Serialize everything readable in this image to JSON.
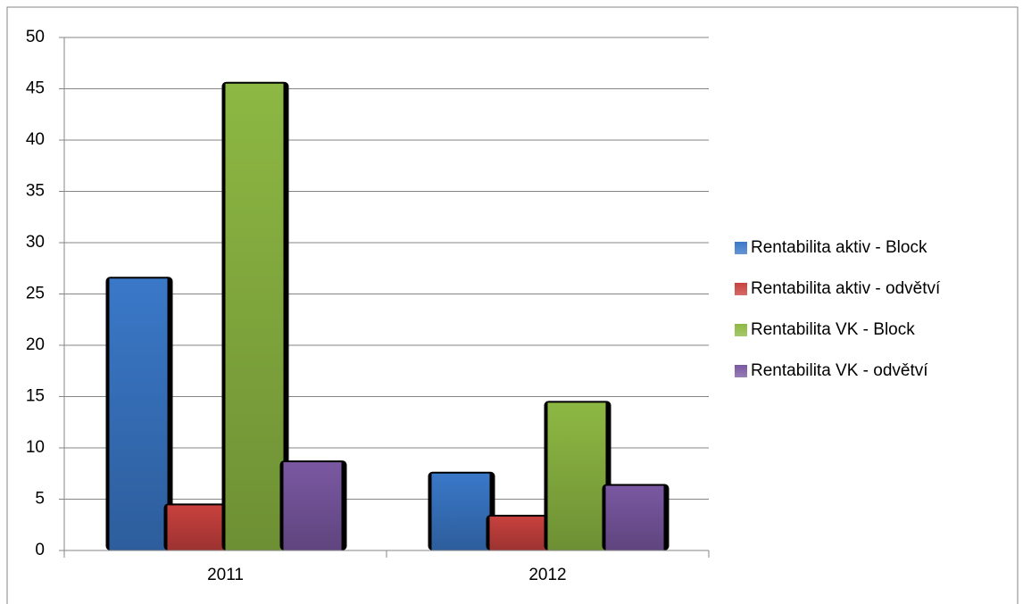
{
  "chart_data": {
    "type": "bar",
    "categories": [
      "2011",
      "2012"
    ],
    "series": [
      {
        "name": "Rentabilita aktiv - Block",
        "color": "#3a78c8",
        "values": [
          26.5,
          7.5
        ]
      },
      {
        "name": "Rentabilita aktiv - odvětví",
        "color": "#c8413e",
        "values": [
          4.4,
          3.3
        ]
      },
      {
        "name": "Rentabilita VK - Block",
        "color": "#8db843",
        "values": [
          45.5,
          14.4
        ]
      },
      {
        "name": "Rentabilita VK - odvětví",
        "color": "#7a58a2",
        "values": [
          8.6,
          6.3
        ]
      }
    ],
    "ylim": [
      0,
      50
    ],
    "yticks": [
      0,
      5,
      10,
      15,
      20,
      25,
      30,
      35,
      40,
      45,
      50
    ],
    "grid": true,
    "legend": "right"
  }
}
